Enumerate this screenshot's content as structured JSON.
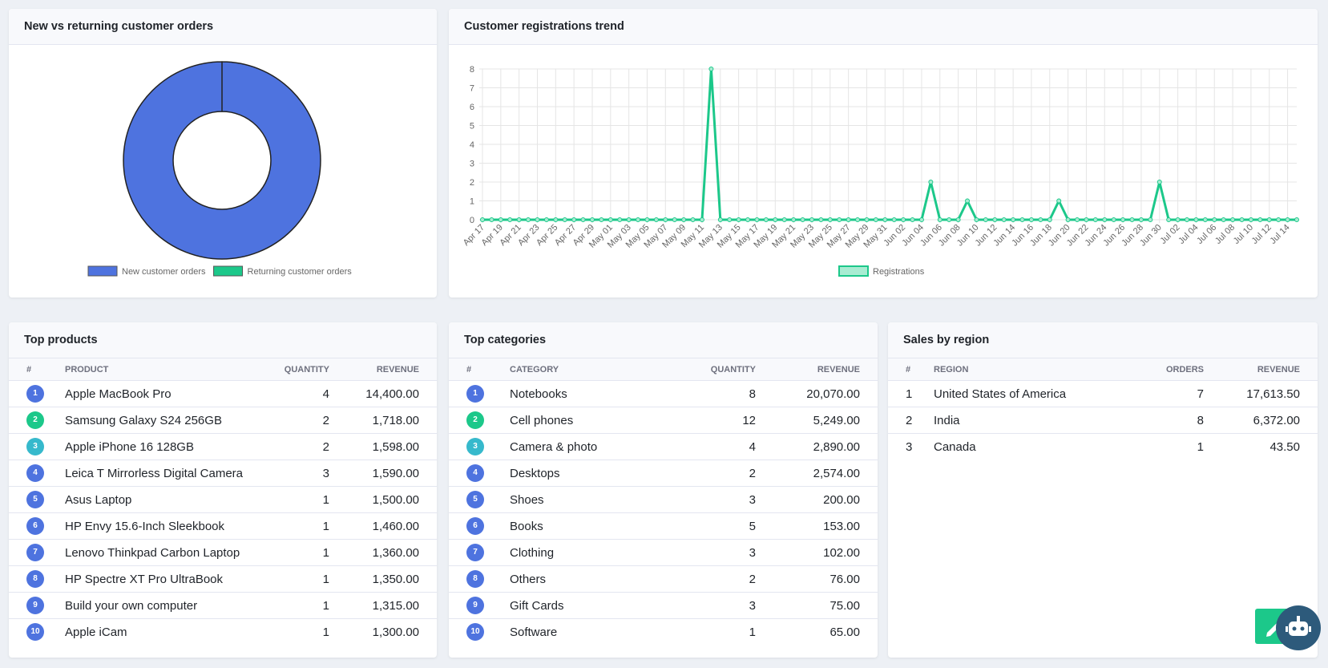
{
  "chart_data": [
    {
      "type": "donut",
      "title": "New vs returning customer orders",
      "categories": [
        "New customer orders",
        "Returning customer orders"
      ],
      "values": [
        16,
        0
      ],
      "colors": [
        "#4e73df",
        "#1cc88a"
      ]
    },
    {
      "type": "line",
      "title": "Customer registrations trend",
      "categories": [
        "Apr 17",
        null,
        "Apr 19",
        null,
        "Apr 21",
        null,
        "Apr 23",
        null,
        "Apr 25",
        null,
        "Apr 27",
        null,
        "Apr 29",
        null,
        "May 01",
        null,
        "May 03",
        null,
        "May 05",
        null,
        "May 07",
        null,
        "May 09",
        null,
        "May 11",
        null,
        "May 13",
        null,
        "May 15",
        null,
        "May 17",
        null,
        "May 19",
        null,
        "May 21",
        null,
        "May 23",
        null,
        "May 25",
        null,
        "May 27",
        null,
        "May 29",
        null,
        "May 31",
        null,
        "Jun 02",
        null,
        "Jun 04",
        null,
        "Jun 06",
        null,
        "Jun 08",
        null,
        "Jun 10",
        null,
        "Jun 12",
        null,
        "Jun 14",
        null,
        "Jun 16",
        null,
        "Jun 18",
        null,
        "Jun 20",
        null,
        "Jun 22",
        null,
        "Jun 24",
        null,
        "Jun 26",
        null,
        "Jun 28",
        null,
        "Jun 30",
        null,
        "Jul 02",
        null,
        "Jul 04",
        null,
        "Jul 06",
        null,
        "Jul 08",
        null,
        "Jul 10",
        null,
        "Jul 12",
        null,
        "Jul 14",
        null
      ],
      "series": [
        {
          "name": "Registrations",
          "color": "#1cc88a",
          "values": [
            0,
            0,
            0,
            0,
            0,
            0,
            0,
            0,
            0,
            0,
            0,
            0,
            0,
            0,
            0,
            0,
            0,
            0,
            0,
            0,
            0,
            0,
            0,
            0,
            0,
            8,
            0,
            0,
            0,
            0,
            0,
            0,
            0,
            0,
            0,
            0,
            0,
            0,
            0,
            0,
            0,
            0,
            0,
            0,
            0,
            0,
            0,
            0,
            0,
            2,
            0,
            0,
            0,
            1,
            0,
            0,
            0,
            0,
            0,
            0,
            0,
            0,
            0,
            1,
            0,
            0,
            0,
            0,
            0,
            0,
            0,
            0,
            0,
            0,
            2,
            0,
            0,
            0,
            0,
            0,
            0,
            0,
            0,
            0,
            0,
            0,
            0,
            0,
            0,
            0
          ]
        }
      ],
      "ylim": [
        0,
        8
      ],
      "yticks": [
        0,
        1,
        2,
        3,
        4,
        5,
        6,
        7,
        8
      ],
      "grid": true
    }
  ],
  "tables": [
    {
      "title": "Top products",
      "columns": [
        "#",
        "PRODUCT",
        "QUANTITY",
        "REVENUE"
      ],
      "rows": [
        [
          1,
          "Apple MacBook Pro",
          4,
          "14,400.00"
        ],
        [
          2,
          "Samsung Galaxy S24 256GB",
          2,
          "1,718.00"
        ],
        [
          3,
          "Apple iPhone 16 128GB",
          2,
          "1,598.00"
        ],
        [
          4,
          "Leica T Mirrorless Digital Camera",
          3,
          "1,590.00"
        ],
        [
          5,
          "Asus Laptop",
          1,
          "1,500.00"
        ],
        [
          6,
          "HP Envy 15.6-Inch Sleekbook",
          1,
          "1,460.00"
        ],
        [
          7,
          "Lenovo Thinkpad Carbon Laptop",
          1,
          "1,360.00"
        ],
        [
          8,
          "HP Spectre XT Pro UltraBook",
          1,
          "1,350.00"
        ],
        [
          9,
          "Build your own computer",
          1,
          "1,315.00"
        ],
        [
          10,
          "Apple iCam",
          1,
          "1,300.00"
        ]
      ]
    },
    {
      "title": "Top categories",
      "columns": [
        "#",
        "CATEGORY",
        "QUANTITY",
        "REVENUE"
      ],
      "rows": [
        [
          1,
          "Notebooks",
          8,
          "20,070.00"
        ],
        [
          2,
          "Cell phones",
          12,
          "5,249.00"
        ],
        [
          3,
          "Camera & photo",
          4,
          "2,890.00"
        ],
        [
          4,
          "Desktops",
          2,
          "2,574.00"
        ],
        [
          5,
          "Shoes",
          3,
          "200.00"
        ],
        [
          6,
          "Books",
          5,
          "153.00"
        ],
        [
          7,
          "Clothing",
          3,
          "102.00"
        ],
        [
          8,
          "Others",
          2,
          "76.00"
        ],
        [
          9,
          "Gift Cards",
          3,
          "75.00"
        ],
        [
          10,
          "Software",
          1,
          "65.00"
        ]
      ]
    },
    {
      "title": "Sales by region",
      "columns": [
        "#",
        "REGION",
        "ORDERS",
        "REVENUE"
      ],
      "rows": [
        [
          1,
          "United States of America",
          7,
          "17,613.50"
        ],
        [
          2,
          "India",
          8,
          "6,372.00"
        ],
        [
          3,
          "Canada",
          1,
          "43.50"
        ]
      ]
    }
  ]
}
